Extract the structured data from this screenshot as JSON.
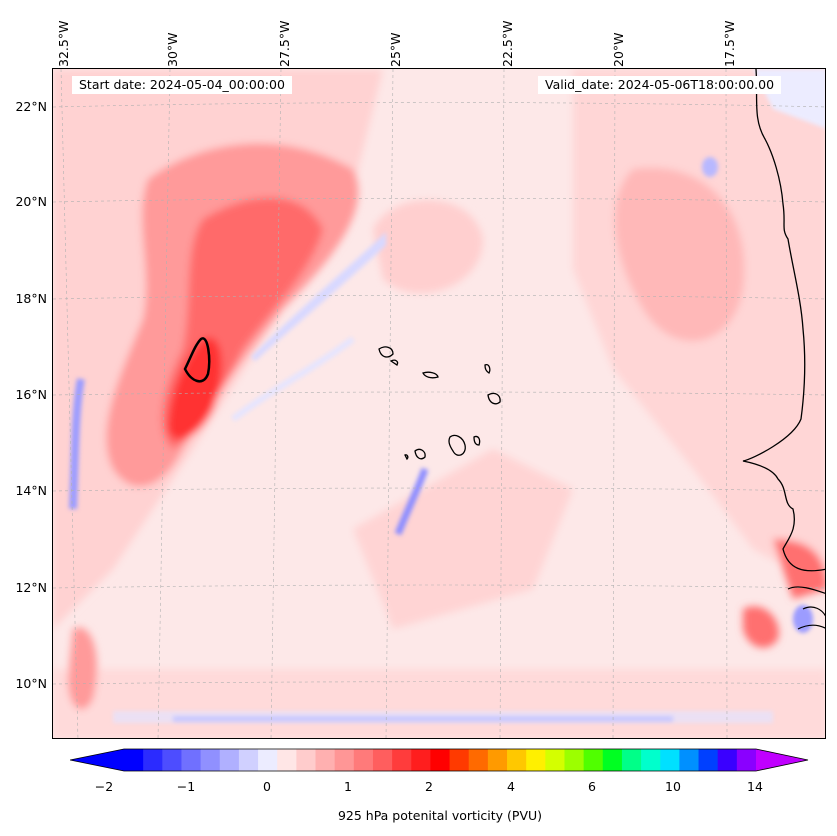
{
  "header": {
    "start_date": "Start date: 2024-05-04_00:00:00",
    "valid_date": "Valid_date: 2024-05-06T18:00:00.00"
  },
  "axes": {
    "lon_labels": [
      "32.5°W",
      "30°W",
      "27.5°W",
      "25°W",
      "22.5°W",
      "20°W",
      "17.5°W"
    ],
    "lat_labels": [
      "22°N",
      "20°N",
      "18°N",
      "16°N",
      "14°N",
      "12°N",
      "10°N"
    ]
  },
  "colorbar": {
    "label": "925 hPa potenital vorticity (PVU)",
    "ticks": [
      "−2",
      "−1",
      "0",
      "1",
      "2",
      "4",
      "6",
      "10",
      "14"
    ],
    "colors": [
      "#0000ff",
      "#2b2bff",
      "#4d4dff",
      "#7070ff",
      "#9090ff",
      "#b0b0ff",
      "#d0d0ff",
      "#ececff",
      "#ffe6e6",
      "#ffcccc",
      "#ffb0b0",
      "#ff9696",
      "#ff7a7a",
      "#ff5e5e",
      "#ff3c3c",
      "#ff1e1e",
      "#ff0000",
      "#ff3a00",
      "#ff6a00",
      "#ff9a00",
      "#ffc800",
      "#fff000",
      "#d4ff00",
      "#9cff00",
      "#50ff00",
      "#00ff22",
      "#00ff88",
      "#00ffcc",
      "#00e0ff",
      "#0090ff",
      "#0040ff",
      "#3a00ff",
      "#8a00ff"
    ],
    "under_color": "#0000ff",
    "over_color": "#c000ff"
  },
  "map": {
    "background_color": "#fde9e9",
    "coastline_color": "#000000"
  }
}
